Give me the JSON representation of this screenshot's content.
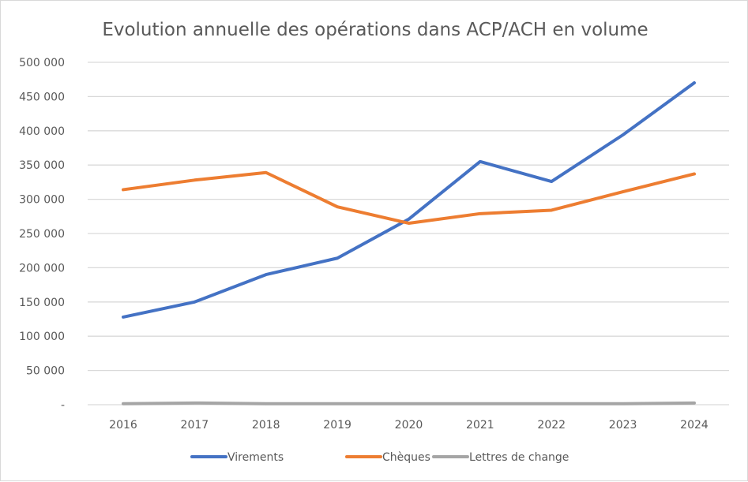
{
  "chart_data": {
    "type": "line",
    "title": "Evolution annuelle des opérations dans ACP/ACH en volume",
    "xlabel": "",
    "ylabel": "",
    "categories": [
      "2016",
      "2017",
      "2018",
      "2019",
      "2020",
      "2021",
      "2022",
      "2023",
      "2024"
    ],
    "ylim": [
      0,
      500000
    ],
    "y_ticks": [
      0,
      50000,
      100000,
      150000,
      200000,
      250000,
      300000,
      350000,
      400000,
      450000,
      500000
    ],
    "y_tick_labels": [
      "-",
      "50 000",
      "100 000",
      "150 000",
      "200 000",
      "250 000",
      "300 000",
      "350 000",
      "400 000",
      "450 000",
      "500 000"
    ],
    "grid": true,
    "legend_position": "bottom",
    "series": [
      {
        "name": "Virements",
        "color": "#4472c4",
        "values": [
          128000,
          150000,
          190000,
          214000,
          271000,
          355000,
          326000,
          394000,
          470000
        ]
      },
      {
        "name": "Chèques",
        "color": "#ed7d31",
        "values": [
          314000,
          328000,
          339000,
          289000,
          265000,
          279000,
          284000,
          311000,
          337000
        ]
      },
      {
        "name": "Lettres de change",
        "color": "#a5a5a5",
        "values": [
          1500,
          2500,
          1500,
          1500,
          1500,
          1500,
          1500,
          1500,
          2500
        ]
      }
    ]
  }
}
